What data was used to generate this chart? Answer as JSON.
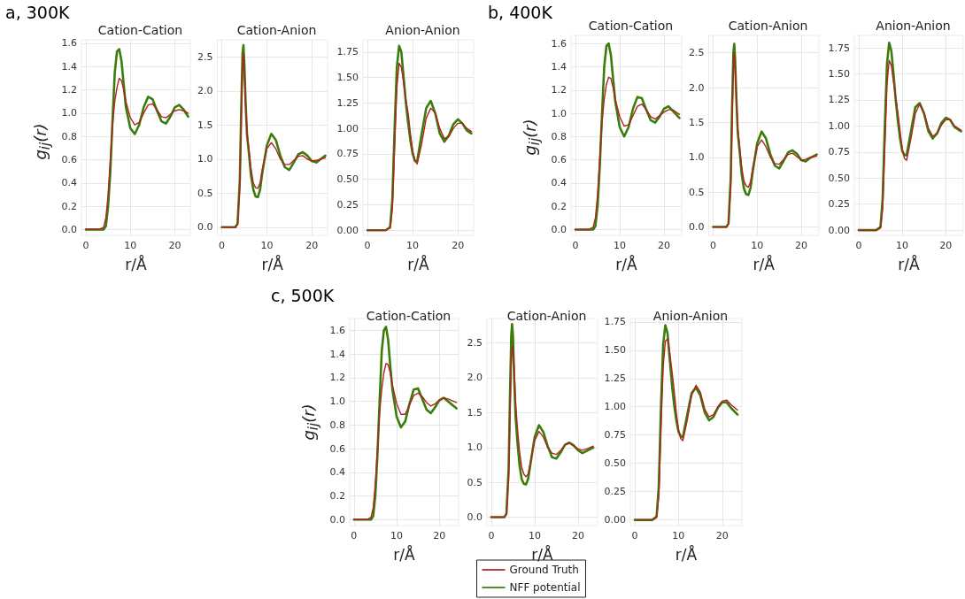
{
  "chart_data": [
    {
      "type": "line",
      "title": "Cation-Cation",
      "xlabel": "r/Å",
      "ylabel": "g$_{ij}$(r)",
      "annotations": [
        "a, 300K"
      ],
      "grid": true,
      "xlim": [
        -1,
        23.5
      ],
      "xticks": [
        0,
        10,
        20
      ],
      "ylim": [
        -0.05,
        1.63
      ],
      "yticks": [
        {
          "value": 0,
          "label": "0.0"
        },
        {
          "value": 0.2,
          "label": "0.2"
        },
        {
          "value": 0.4,
          "label": "0.4"
        },
        {
          "value": 0.6,
          "label": "0.6"
        },
        {
          "value": 0.8,
          "label": "0.8"
        },
        {
          "value": 1,
          "label": "1.0"
        },
        {
          "value": 1.2,
          "label": "1.2"
        },
        {
          "value": 1.4,
          "label": "1.4"
        },
        {
          "value": 1.6,
          "label": "1.6"
        }
      ],
      "x": [
        0,
        3,
        4,
        4.5,
        5,
        5.5,
        6,
        6.5,
        7,
        7.5,
        8,
        8.5,
        9,
        10,
        11,
        12,
        13,
        14,
        15,
        16,
        17,
        18,
        19,
        20,
        21,
        22,
        23
      ],
      "series": [
        {
          "color": "#b22222",
          "values": [
            0,
            0,
            0.02,
            0.1,
            0.3,
            0.6,
            0.9,
            1.1,
            1.22,
            1.3,
            1.28,
            1.2,
            1.1,
            0.96,
            0.9,
            0.92,
            1.0,
            1.07,
            1.08,
            1.03,
            0.97,
            0.96,
            0.99,
            1.02,
            1.03,
            1.02,
            1.0
          ]
        },
        {
          "color": "#3a7d0a",
          "values": [
            0,
            0,
            0,
            0.03,
            0.2,
            0.5,
            0.95,
            1.35,
            1.53,
            1.55,
            1.45,
            1.25,
            1.05,
            0.87,
            0.82,
            0.9,
            1.05,
            1.14,
            1.12,
            1.02,
            0.93,
            0.91,
            0.97,
            1.05,
            1.07,
            1.03,
            0.97
          ]
        }
      ]
    },
    {
      "type": "line",
      "title": "Cation-Anion",
      "xlabel": "r/Å",
      "grid": true,
      "xlim": [
        -1,
        23.5
      ],
      "xticks": [
        0,
        10,
        20
      ],
      "ylim": [
        -0.12,
        2.75
      ],
      "yticks": [
        {
          "value": 0,
          "label": "0.0"
        },
        {
          "value": 0.5,
          "label": "0.5"
        },
        {
          "value": 1,
          "label": "1.0"
        },
        {
          "value": 1.5,
          "label": "1.5"
        },
        {
          "value": 2,
          "label": "2.0"
        },
        {
          "value": 2.5,
          "label": "2.5"
        }
      ],
      "x": [
        0,
        3,
        3.5,
        4,
        4.3,
        4.6,
        4.8,
        5,
        5.3,
        5.6,
        6,
        6.5,
        7,
        7.5,
        8,
        8.5,
        9,
        10,
        11,
        12,
        13,
        14,
        15,
        16,
        17,
        18,
        19,
        20,
        21,
        22,
        23
      ],
      "series": [
        {
          "color": "#b22222",
          "values": [
            0,
            0,
            0.05,
            0.6,
            1.5,
            2.4,
            2.55,
            2.3,
            1.8,
            1.4,
            1.15,
            0.85,
            0.65,
            0.58,
            0.57,
            0.65,
            0.85,
            1.15,
            1.24,
            1.15,
            1.0,
            0.92,
            0.92,
            0.98,
            1.04,
            1.05,
            1.0,
            0.97,
            0.98,
            1.0,
            1.02
          ]
        },
        {
          "color": "#3a7d0a",
          "values": [
            0,
            0,
            0.05,
            0.7,
            1.7,
            2.55,
            2.67,
            2.4,
            1.8,
            1.35,
            1.1,
            0.75,
            0.55,
            0.45,
            0.44,
            0.55,
            0.8,
            1.2,
            1.37,
            1.28,
            1.05,
            0.88,
            0.84,
            0.95,
            1.07,
            1.1,
            1.05,
            0.97,
            0.95,
            1.0,
            1.05
          ]
        }
      ]
    },
    {
      "type": "line",
      "title": "Anion-Anion",
      "xlabel": "r/Å",
      "grid": true,
      "xlim": [
        -1,
        23.5
      ],
      "xticks": [
        0,
        10,
        20
      ],
      "ylim": [
        -0.05,
        1.87
      ],
      "yticks": [
        {
          "value": 0,
          "label": "0.00"
        },
        {
          "value": 0.25,
          "label": "0.25"
        },
        {
          "value": 0.5,
          "label": "0.50"
        },
        {
          "value": 0.75,
          "label": "0.75"
        },
        {
          "value": 1,
          "label": "1.00"
        },
        {
          "value": 1.25,
          "label": "1.25"
        },
        {
          "value": 1.5,
          "label": "1.50"
        },
        {
          "value": 1.75,
          "label": "1.75"
        }
      ],
      "x": [
        0,
        4,
        5,
        5.5,
        6,
        6.5,
        7,
        7.5,
        8,
        8.5,
        9,
        9.5,
        10,
        10.5,
        11,
        12,
        13,
        14,
        15,
        16,
        17,
        18,
        19,
        20,
        21,
        22,
        23
      ],
      "series": [
        {
          "color": "#b22222",
          "values": [
            0,
            0,
            0.02,
            0.2,
            0.8,
            1.4,
            1.64,
            1.6,
            1.45,
            1.28,
            1.15,
            0.95,
            0.78,
            0.68,
            0.65,
            0.85,
            1.1,
            1.2,
            1.15,
            1.0,
            0.9,
            0.92,
            1.0,
            1.05,
            1.05,
            1.0,
            0.97
          ]
        },
        {
          "color": "#3a7d0a",
          "values": [
            0,
            0,
            0.03,
            0.3,
            1.0,
            1.6,
            1.81,
            1.75,
            1.5,
            1.25,
            1.05,
            0.88,
            0.75,
            0.68,
            0.68,
            0.95,
            1.2,
            1.27,
            1.15,
            0.95,
            0.87,
            0.93,
            1.04,
            1.09,
            1.05,
            0.98,
            0.95
          ]
        }
      ]
    },
    {
      "type": "line",
      "title": "Cation-Cation",
      "xlabel": "r/Å",
      "ylabel": "g$_{ij}$(r)",
      "annotations": [
        "b, 400K"
      ],
      "grid": true,
      "xlim": [
        -1,
        24
      ],
      "xticks": [
        0,
        10,
        20
      ],
      "ylim": [
        -0.05,
        1.67
      ],
      "yticks": [
        {
          "value": 0,
          "label": "0.0"
        },
        {
          "value": 0.2,
          "label": "0.2"
        },
        {
          "value": 0.4,
          "label": "0.4"
        },
        {
          "value": 0.6,
          "label": "0.6"
        },
        {
          "value": 0.8,
          "label": "0.8"
        },
        {
          "value": 1,
          "label": "1.0"
        },
        {
          "value": 1.2,
          "label": "1.2"
        },
        {
          "value": 1.4,
          "label": "1.4"
        },
        {
          "value": 1.6,
          "label": "1.6"
        }
      ],
      "x": [
        0,
        3,
        4,
        4.5,
        5,
        5.5,
        6,
        6.5,
        7,
        7.5,
        8,
        8.5,
        9,
        10,
        11,
        12,
        13,
        14,
        15,
        16,
        17,
        18,
        19,
        20,
        21,
        22,
        23.5
      ],
      "series": [
        {
          "color": "#b22222",
          "values": [
            0,
            0,
            0.02,
            0.1,
            0.3,
            0.62,
            0.92,
            1.12,
            1.25,
            1.31,
            1.3,
            1.22,
            1.12,
            0.97,
            0.89,
            0.9,
            0.98,
            1.06,
            1.08,
            1.03,
            0.97,
            0.95,
            0.98,
            1.01,
            1.03,
            1.03,
            0.99
          ]
        },
        {
          "color": "#3a7d0a",
          "values": [
            0,
            0,
            0,
            0.03,
            0.2,
            0.55,
            1.0,
            1.4,
            1.58,
            1.6,
            1.5,
            1.3,
            1.1,
            0.88,
            0.8,
            0.88,
            1.04,
            1.14,
            1.13,
            1.03,
            0.94,
            0.92,
            0.97,
            1.04,
            1.06,
            1.02,
            0.96
          ]
        }
      ]
    },
    {
      "type": "line",
      "title": "Cation-Anion",
      "xlabel": "r/Å",
      "grid": true,
      "xlim": [
        -1,
        24
      ],
      "xticks": [
        0,
        10,
        20
      ],
      "ylim": [
        -0.12,
        2.75
      ],
      "yticks": [
        {
          "value": 0,
          "label": "0.0"
        },
        {
          "value": 0.5,
          "label": "0.5"
        },
        {
          "value": 1,
          "label": "1.0"
        },
        {
          "value": 1.5,
          "label": "1.5"
        },
        {
          "value": 2,
          "label": "2.0"
        },
        {
          "value": 2.5,
          "label": "2.5"
        }
      ],
      "x": [
        0,
        3,
        3.5,
        4,
        4.3,
        4.6,
        4.8,
        5,
        5.3,
        5.6,
        6,
        6.5,
        7,
        7.5,
        8,
        8.5,
        9,
        10,
        11,
        12,
        13,
        14,
        15,
        16,
        17,
        18,
        19,
        20,
        21,
        22,
        23.5
      ],
      "series": [
        {
          "color": "#b22222",
          "values": [
            0,
            0,
            0.05,
            0.6,
            1.5,
            2.35,
            2.5,
            2.3,
            1.8,
            1.4,
            1.15,
            0.85,
            0.66,
            0.59,
            0.57,
            0.65,
            0.85,
            1.15,
            1.25,
            1.15,
            1.0,
            0.91,
            0.9,
            0.97,
            1.04,
            1.06,
            1.01,
            0.96,
            0.97,
            1.0,
            1.02
          ]
        },
        {
          "color": "#3a7d0a",
          "values": [
            0,
            0,
            0.05,
            0.7,
            1.7,
            2.5,
            2.63,
            2.4,
            1.8,
            1.35,
            1.1,
            0.75,
            0.55,
            0.47,
            0.46,
            0.56,
            0.8,
            1.2,
            1.37,
            1.27,
            1.04,
            0.88,
            0.84,
            0.95,
            1.07,
            1.1,
            1.05,
            0.96,
            0.94,
            0.99,
            1.04
          ]
        }
      ]
    },
    {
      "type": "line",
      "title": "Anion-Anion",
      "xlabel": "r/Å",
      "grid": true,
      "xlim": [
        -1,
        24
      ],
      "xticks": [
        0,
        10,
        20
      ],
      "ylim": [
        -0.05,
        1.87
      ],
      "yticks": [
        {
          "value": 0,
          "label": "0.00"
        },
        {
          "value": 0.25,
          "label": "0.25"
        },
        {
          "value": 0.5,
          "label": "0.50"
        },
        {
          "value": 0.75,
          "label": "0.75"
        },
        {
          "value": 1,
          "label": "1.00"
        },
        {
          "value": 1.25,
          "label": "1.25"
        },
        {
          "value": 1.5,
          "label": "1.50"
        },
        {
          "value": 1.75,
          "label": "1.75"
        }
      ],
      "x": [
        0,
        4,
        5,
        5.5,
        6,
        6.5,
        7,
        7.5,
        8,
        8.5,
        9,
        9.5,
        10,
        10.5,
        11,
        12,
        13,
        14,
        15,
        16,
        17,
        18,
        19,
        20,
        21,
        22,
        23.5
      ],
      "series": [
        {
          "color": "#b22222",
          "values": [
            0,
            0,
            0.02,
            0.2,
            0.8,
            1.4,
            1.63,
            1.58,
            1.42,
            1.27,
            1.13,
            0.95,
            0.78,
            0.69,
            0.67,
            0.88,
            1.12,
            1.21,
            1.13,
            0.98,
            0.9,
            0.93,
            1.01,
            1.06,
            1.06,
            1.0,
            0.96
          ]
        },
        {
          "color": "#3a7d0a",
          "values": [
            0,
            0,
            0.03,
            0.3,
            1.0,
            1.6,
            1.8,
            1.72,
            1.5,
            1.25,
            1.05,
            0.88,
            0.76,
            0.72,
            0.72,
            0.95,
            1.18,
            1.22,
            1.12,
            0.95,
            0.88,
            0.93,
            1.03,
            1.08,
            1.06,
            0.99,
            0.95
          ]
        }
      ]
    },
    {
      "type": "line",
      "title": "Cation-Cation",
      "xlabel": "r/Å",
      "ylabel": "g$_{ij}$(r)",
      "annotations": [
        "c, 500K"
      ],
      "grid": true,
      "xlim": [
        -1,
        24.5
      ],
      "xticks": [
        0,
        10,
        20
      ],
      "ylim": [
        -0.05,
        1.7
      ],
      "yticks": [
        {
          "value": 0,
          "label": "0.0"
        },
        {
          "value": 0.2,
          "label": "0.2"
        },
        {
          "value": 0.4,
          "label": "0.4"
        },
        {
          "value": 0.6,
          "label": "0.6"
        },
        {
          "value": 0.8,
          "label": "0.8"
        },
        {
          "value": 1,
          "label": "1.0"
        },
        {
          "value": 1.2,
          "label": "1.2"
        },
        {
          "value": 1.4,
          "label": "1.4"
        },
        {
          "value": 1.6,
          "label": "1.6"
        }
      ],
      "x": [
        0,
        3,
        4,
        4.5,
        5,
        5.5,
        6,
        6.5,
        7,
        7.5,
        8,
        8.5,
        9,
        10,
        11,
        12,
        13,
        14,
        15,
        16,
        17,
        18,
        19,
        20,
        21,
        22,
        24
      ],
      "series": [
        {
          "color": "#b22222",
          "values": [
            0,
            0,
            0.02,
            0.1,
            0.3,
            0.6,
            0.9,
            1.1,
            1.24,
            1.32,
            1.31,
            1.24,
            1.14,
            0.98,
            0.89,
            0.89,
            0.97,
            1.05,
            1.07,
            1.04,
            0.99,
            0.96,
            0.98,
            1.01,
            1.03,
            1.02,
            0.99
          ]
        },
        {
          "color": "#3a7d0a",
          "values": [
            0,
            0,
            0,
            0.03,
            0.2,
            0.55,
            1.0,
            1.42,
            1.6,
            1.63,
            1.52,
            1.3,
            1.1,
            0.87,
            0.78,
            0.83,
            0.98,
            1.1,
            1.11,
            1.02,
            0.93,
            0.9,
            0.95,
            1.01,
            1.03,
            1.0,
            0.94
          ]
        }
      ]
    },
    {
      "type": "line",
      "title": "Cation-Anion",
      "xlabel": "r/Å",
      "grid": true,
      "legend": "bottom",
      "xlim": [
        -1,
        24.5
      ],
      "xticks": [
        0,
        10,
        20
      ],
      "ylim": [
        -0.12,
        2.85
      ],
      "yticks": [
        {
          "value": 0,
          "label": "0.0"
        },
        {
          "value": 0.5,
          "label": "0.5"
        },
        {
          "value": 1,
          "label": "1.0"
        },
        {
          "value": 1.5,
          "label": "1.5"
        },
        {
          "value": 2,
          "label": "2.0"
        },
        {
          "value": 2.5,
          "label": "2.5"
        }
      ],
      "x": [
        0,
        3,
        3.5,
        4,
        4.3,
        4.6,
        4.8,
        5,
        5.3,
        5.6,
        6,
        6.5,
        7,
        7.5,
        8,
        8.5,
        9,
        10,
        11,
        12,
        13,
        14,
        15,
        16,
        17,
        18,
        19,
        20,
        21,
        22,
        23.5
      ],
      "series": [
        {
          "name": "Ground Truth",
          "color": "#b22222",
          "values": [
            0,
            0,
            0.05,
            0.55,
            1.4,
            2.2,
            2.42,
            2.45,
            2.1,
            1.65,
            1.3,
            0.95,
            0.72,
            0.62,
            0.58,
            0.62,
            0.78,
            1.1,
            1.23,
            1.15,
            1.0,
            0.92,
            0.9,
            0.96,
            1.04,
            1.06,
            1.02,
            0.98,
            0.96,
            0.98,
            1.02
          ]
        },
        {
          "name": "NFF potential",
          "color": "#3a7d0a",
          "values": [
            0,
            0,
            0.05,
            0.7,
            1.7,
            2.6,
            2.77,
            2.6,
            1.95,
            1.45,
            1.1,
            0.75,
            0.55,
            0.48,
            0.47,
            0.55,
            0.75,
            1.15,
            1.32,
            1.22,
            1.02,
            0.86,
            0.84,
            0.93,
            1.04,
            1.07,
            1.03,
            0.96,
            0.92,
            0.95,
            1.0
          ]
        }
      ]
    },
    {
      "type": "line",
      "title": "Anion-Anion",
      "xlabel": "r/Å",
      "grid": true,
      "xlim": [
        -1,
        24.5
      ],
      "xticks": [
        0,
        10,
        20
      ],
      "ylim": [
        -0.05,
        1.78
      ],
      "yticks": [
        {
          "value": 0,
          "label": "0.00"
        },
        {
          "value": 0.25,
          "label": "0.25"
        },
        {
          "value": 0.5,
          "label": "0.50"
        },
        {
          "value": 0.75,
          "label": "0.75"
        },
        {
          "value": 1,
          "label": "1.00"
        },
        {
          "value": 1.25,
          "label": "1.25"
        },
        {
          "value": 1.5,
          "label": "1.50"
        },
        {
          "value": 1.75,
          "label": "1.75"
        }
      ],
      "x": [
        0,
        4,
        5,
        5.5,
        6,
        6.5,
        7,
        7.5,
        8,
        8.5,
        9,
        9.5,
        10,
        10.5,
        11,
        12,
        13,
        14,
        15,
        16,
        17,
        18,
        19,
        20,
        21,
        22,
        23.5
      ],
      "series": [
        {
          "color": "#b22222",
          "values": [
            0,
            0,
            0.02,
            0.2,
            0.8,
            1.35,
            1.58,
            1.6,
            1.48,
            1.32,
            1.15,
            0.95,
            0.8,
            0.72,
            0.7,
            0.88,
            1.1,
            1.19,
            1.13,
            0.98,
            0.91,
            0.93,
            1.0,
            1.05,
            1.06,
            1.02,
            0.97
          ]
        },
        {
          "color": "#3a7d0a",
          "values": [
            0,
            0,
            0.03,
            0.3,
            1.0,
            1.55,
            1.72,
            1.65,
            1.42,
            1.2,
            1.02,
            0.88,
            0.78,
            0.74,
            0.73,
            0.93,
            1.12,
            1.17,
            1.1,
            0.95,
            0.88,
            0.91,
            0.99,
            1.04,
            1.04,
            0.99,
            0.93
          ]
        }
      ]
    }
  ]
}
